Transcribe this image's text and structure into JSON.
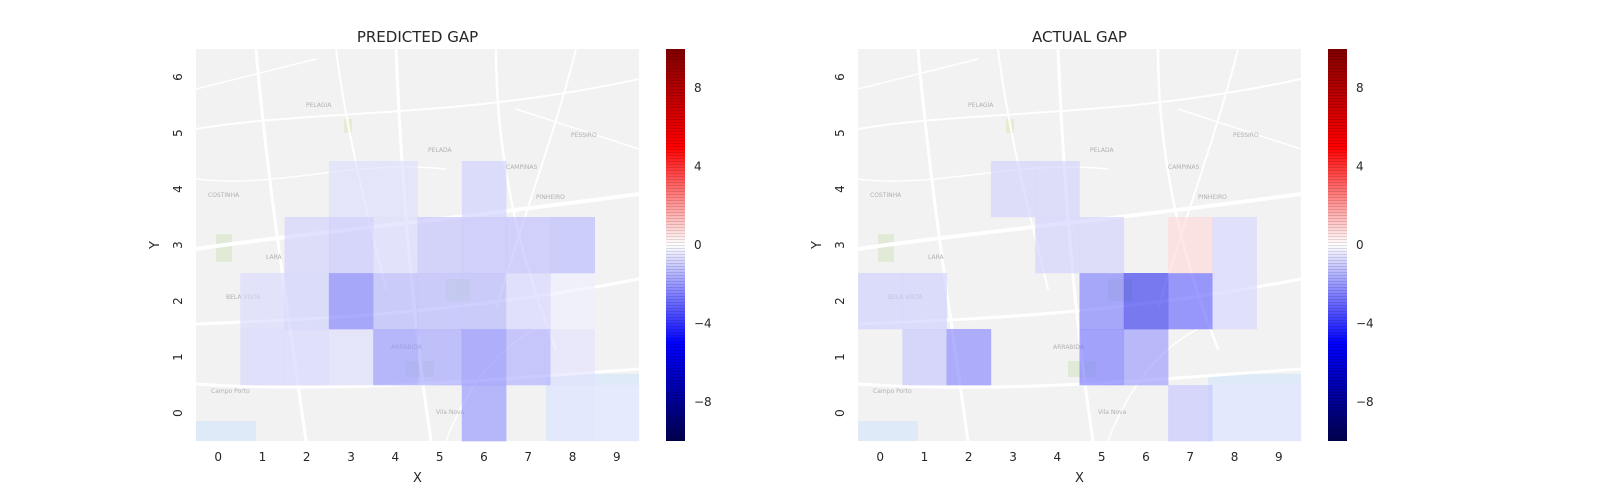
{
  "chart_data": [
    {
      "type": "heatmap",
      "title": "PREDICTED GAP",
      "xlabel": "X",
      "ylabel": "Y",
      "x_ticks": [
        "0",
        "1",
        "2",
        "3",
        "4",
        "5",
        "6",
        "7",
        "8",
        "9"
      ],
      "y_ticks": [
        "0",
        "1",
        "2",
        "3",
        "4",
        "5",
        "6"
      ],
      "colorbar": {
        "ticks": [
          "8",
          "4",
          "0",
          "−4",
          "−8"
        ],
        "tick_values": [
          8,
          4,
          0,
          -4,
          -8
        ],
        "range": [
          -10,
          10
        ],
        "cmap": "seismic"
      },
      "grid": [
        [
          0,
          0,
          0,
          0,
          0,
          0,
          -2.6,
          0,
          -0.6,
          -0.5
        ],
        [
          0,
          -1.0,
          -1.0,
          -0.8,
          -2.6,
          -2.3,
          -2.9,
          -2.0,
          -0.7,
          0
        ],
        [
          0,
          -0.9,
          -1.2,
          -3.2,
          -1.8,
          -1.8,
          -1.8,
          -1.0,
          -0.4,
          0
        ],
        [
          0,
          0,
          -1.1,
          -1.4,
          -0.9,
          -1.5,
          -1.6,
          -1.6,
          -1.7,
          0
        ],
        [
          0,
          0,
          0,
          -0.8,
          -0.8,
          0,
          -1.2,
          0,
          0,
          0
        ],
        [
          0,
          0,
          0,
          0,
          0,
          0,
          0,
          0,
          0,
          0
        ],
        [
          0,
          0,
          0,
          0,
          0,
          0,
          0,
          0,
          0,
          0
        ]
      ]
    },
    {
      "type": "heatmap",
      "title": "ACTUAL GAP",
      "xlabel": "X",
      "ylabel": "Y",
      "x_ticks": [
        "0",
        "1",
        "2",
        "3",
        "4",
        "5",
        "6",
        "7",
        "8",
        "9"
      ],
      "y_ticks": [
        "0",
        "1",
        "2",
        "3",
        "4",
        "5",
        "6"
      ],
      "colorbar": {
        "ticks": [
          "8",
          "4",
          "0",
          "−4",
          "−8"
        ],
        "tick_values": [
          8,
          4,
          0,
          -4,
          -8
        ],
        "range": [
          -10,
          10
        ],
        "cmap": "seismic"
      },
      "grid": [
        [
          0,
          0,
          0,
          0,
          0,
          0,
          0,
          -1.4,
          -0.6,
          -0.6
        ],
        [
          0,
          -1.4,
          -3.0,
          0,
          0,
          -3.4,
          -2.5,
          0,
          0,
          0
        ],
        [
          -1.2,
          -1.2,
          0,
          0,
          0,
          -3.2,
          -5.6,
          -3.8,
          -1.0,
          0
        ],
        [
          0,
          0,
          0,
          0,
          -1.1,
          -1.1,
          0,
          0.9,
          -1.0,
          0
        ],
        [
          0,
          0,
          0,
          -1.1,
          -1.1,
          0,
          0,
          0,
          0,
          0
        ],
        [
          0,
          0,
          0,
          0,
          0,
          0,
          0,
          0,
          0,
          0
        ],
        [
          0,
          0,
          0,
          0,
          0,
          0,
          0,
          0,
          0,
          0
        ]
      ]
    }
  ]
}
